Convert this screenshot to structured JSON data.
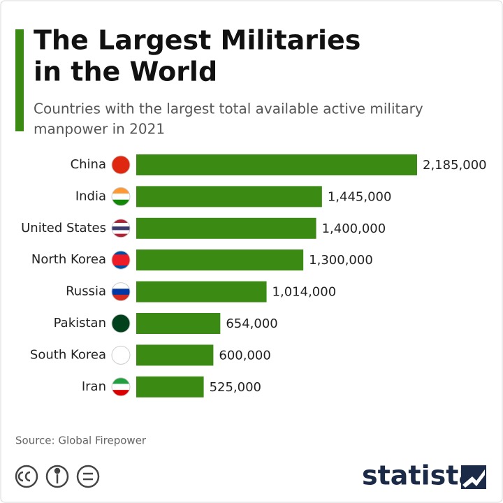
{
  "chart_data": {
    "type": "bar",
    "orientation": "horizontal",
    "title": [
      "The Largest Militaries",
      "in the World"
    ],
    "subtitle": [
      "Countries with the largest total available active military",
      "manpower in 2021"
    ],
    "categories": [
      "China",
      "India",
      "United States",
      "North Korea",
      "Russia",
      "Pakistan",
      "South Korea",
      "Iran"
    ],
    "values": [
      2185000,
      1445000,
      1400000,
      1300000,
      1014000,
      654000,
      600000,
      525000
    ],
    "value_labels": [
      "2,185,000",
      "1,445,000",
      "1,400,000",
      "1,300,000",
      "1,014,000",
      "654,000",
      "600,000",
      "525,000"
    ],
    "color": "#3a8a14",
    "source": "Source: Global Firepower",
    "brand": "statista"
  }
}
